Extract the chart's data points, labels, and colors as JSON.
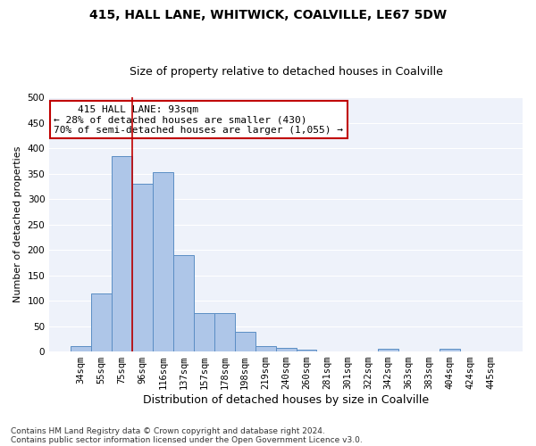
{
  "title1": "415, HALL LANE, WHITWICK, COALVILLE, LE67 5DW",
  "title2": "Size of property relative to detached houses in Coalville",
  "xlabel": "Distribution of detached houses by size in Coalville",
  "ylabel": "Number of detached properties",
  "footnote1": "Contains HM Land Registry data © Crown copyright and database right 2024.",
  "footnote2": "Contains public sector information licensed under the Open Government Licence v3.0.",
  "categories": [
    "34sqm",
    "55sqm",
    "75sqm",
    "96sqm",
    "116sqm",
    "137sqm",
    "157sqm",
    "178sqm",
    "198sqm",
    "219sqm",
    "240sqm",
    "260sqm",
    "281sqm",
    "301sqm",
    "322sqm",
    "342sqm",
    "363sqm",
    "383sqm",
    "404sqm",
    "424sqm",
    "445sqm"
  ],
  "values": [
    10,
    115,
    385,
    330,
    352,
    190,
    76,
    76,
    38,
    11,
    7,
    4,
    0,
    0,
    0,
    5,
    0,
    0,
    5,
    0,
    0
  ],
  "bar_color": "#aec6e8",
  "bar_edge_color": "#5b8ec4",
  "vline_x": 2.5,
  "vline_color": "#c00000",
  "annotation_line1": "    415 HALL LANE: 93sqm",
  "annotation_line2": "← 28% of detached houses are smaller (430)",
  "annotation_line3": "70% of semi-detached houses are larger (1,055) →",
  "annotation_box_color": "#c00000",
  "ylim": [
    0,
    500
  ],
  "yticks": [
    0,
    50,
    100,
    150,
    200,
    250,
    300,
    350,
    400,
    450,
    500
  ],
  "background_color": "#eef2fa",
  "grid_color": "#ffffff",
  "title1_fontsize": 10,
  "title2_fontsize": 9,
  "xlabel_fontsize": 9,
  "ylabel_fontsize": 8,
  "tick_fontsize": 7.5,
  "annotation_fontsize": 8,
  "footnote_fontsize": 6.5
}
